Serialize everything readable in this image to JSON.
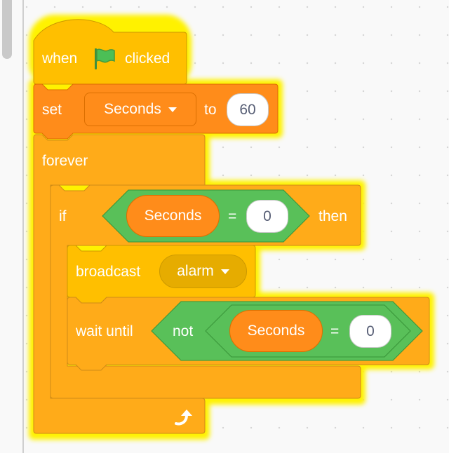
{
  "script": {
    "hat": {
      "when": "when",
      "clicked": "clicked",
      "icon": "green-flag-icon"
    },
    "set": {
      "label": "set",
      "variable": "Seconds",
      "to": "to",
      "value": "60"
    },
    "forever": {
      "label": "forever",
      "end_icon": "loop-arrow-icon"
    },
    "if": {
      "label": "if",
      "condition": {
        "variable": "Seconds",
        "operator": "=",
        "value": "0"
      },
      "then": "then"
    },
    "broadcast": {
      "label": "broadcast",
      "message": "alarm"
    },
    "wait_until": {
      "label": "wait until",
      "not": "not",
      "condition": {
        "variable": "Seconds",
        "operator": "=",
        "value": "0"
      }
    }
  },
  "colors": {
    "events": "#ffbf00",
    "variables": "#ff8c1a",
    "control": "#ffab19",
    "operators": "#59c059",
    "glow": "#fff200"
  }
}
